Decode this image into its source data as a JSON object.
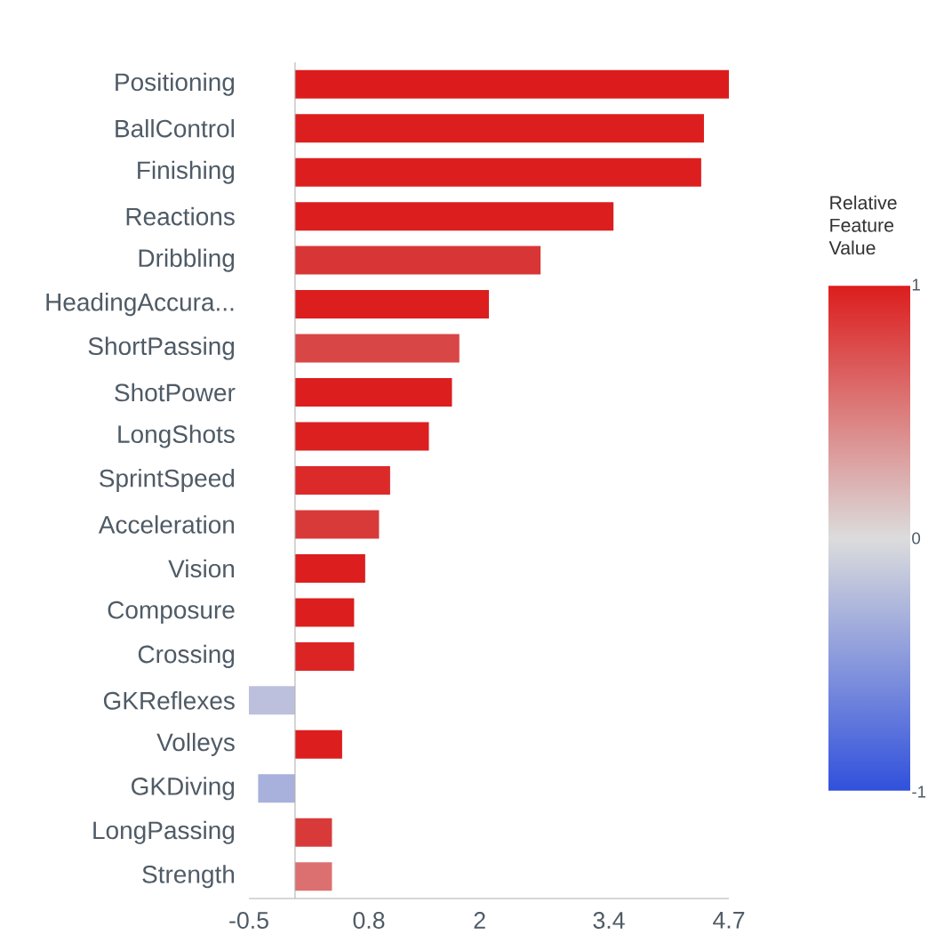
{
  "chart_data": {
    "type": "bar",
    "orientation": "horizontal",
    "categories": [
      "Positioning",
      "BallControl",
      "Finishing",
      "Reactions",
      "Dribbling",
      "HeadingAccura...",
      "ShortPassing",
      "ShotPower",
      "LongShots",
      "SprintSpeed",
      "Acceleration",
      "Vision",
      "Composure",
      "Crossing",
      "GKReflexes",
      "Volleys",
      "GKDiving",
      "LongPassing",
      "Strength"
    ],
    "values": [
      4.7,
      4.43,
      4.4,
      3.45,
      2.66,
      2.1,
      1.78,
      1.7,
      1.45,
      1.03,
      0.91,
      0.76,
      0.64,
      0.64,
      -0.5,
      0.51,
      -0.4,
      0.4,
      0.4
    ],
    "colors": [
      "#dc1c1c",
      "#dc1e1e",
      "#dc1e1e",
      "#dc1e1e",
      "#d83636",
      "#dc1e1e",
      "#d84646",
      "#dc1e1e",
      "#dc2020",
      "#dc2a2a",
      "#d83a3a",
      "#dc1e1e",
      "#dc1e1e",
      "#dc2424",
      "#bcc0dc",
      "#dc1e1e",
      "#a8b0dc",
      "#d83a3a",
      "#dc7070"
    ],
    "xlim": [
      -0.5,
      4.7
    ],
    "xticks": [
      -0.5,
      0.8,
      2,
      3.4,
      4.7
    ],
    "clabel": "Relative Feature Value",
    "clim": [
      -1,
      1
    ],
    "cticks": [
      1,
      0,
      -1
    ],
    "grid": false
  }
}
